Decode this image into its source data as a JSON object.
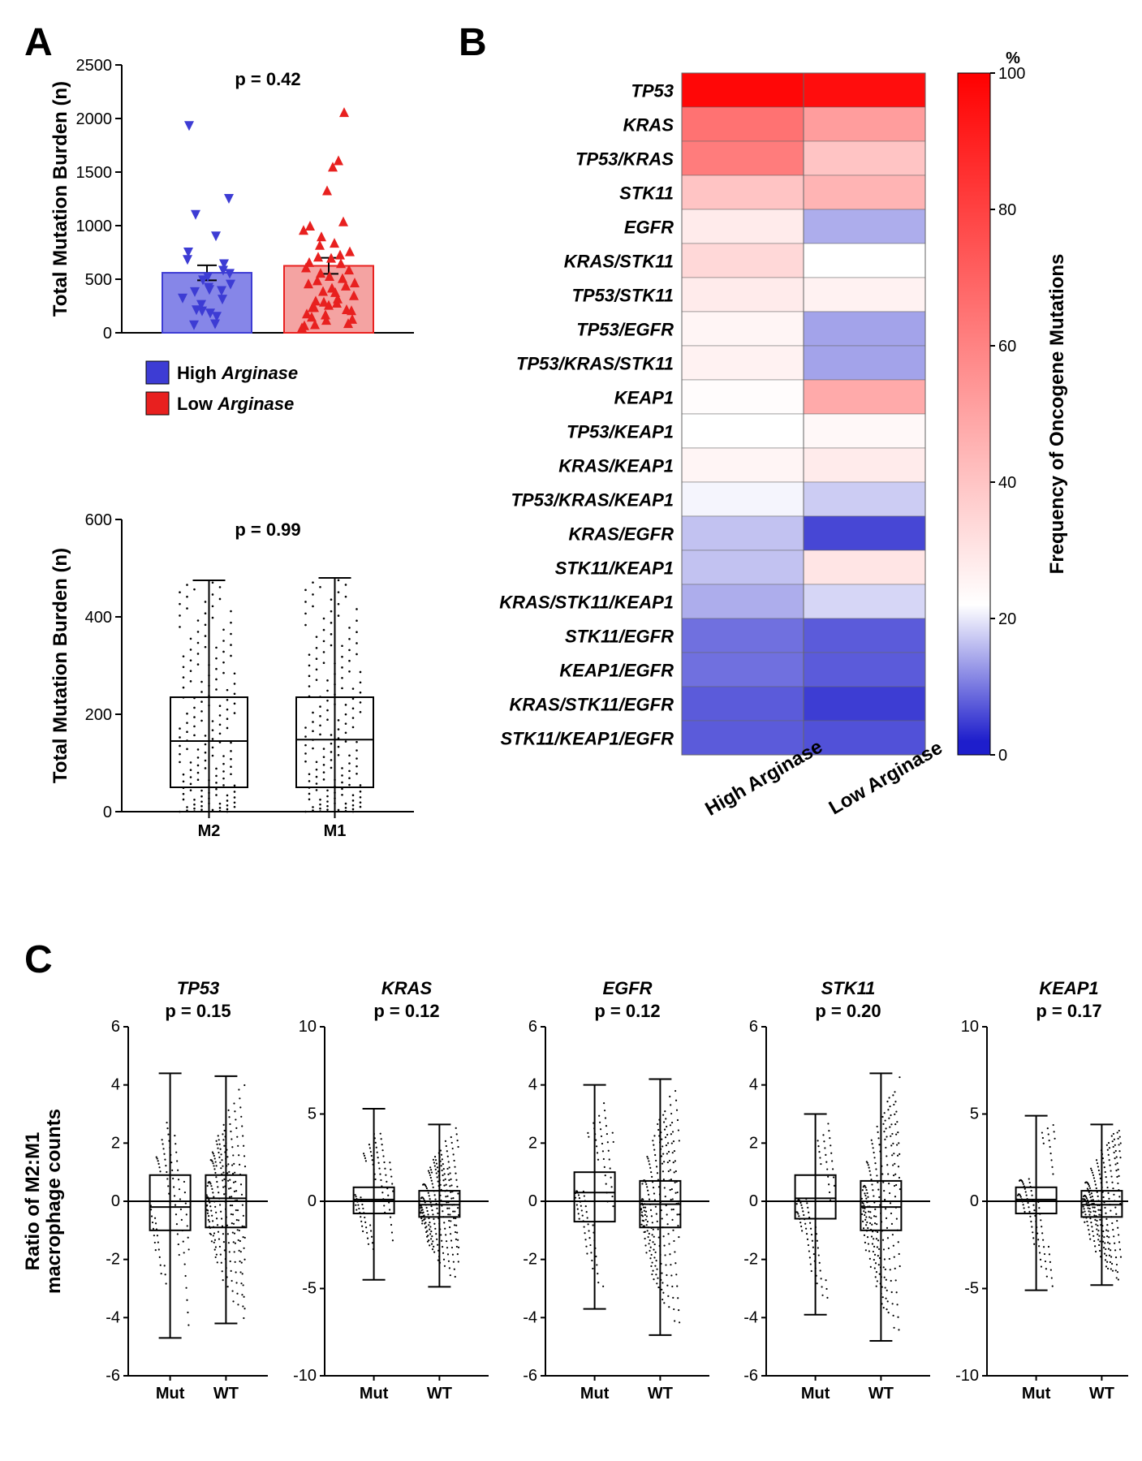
{
  "panels": {
    "A": "A",
    "B": "B",
    "C": "C"
  },
  "colors": {
    "high_arginase": "#3d3cd4",
    "high_arginase_fill": "#8686e8",
    "low_arginase": "#e8201f",
    "low_arginase_fill": "#f4a3a2",
    "heatmap_high": "#ff0000",
    "heatmap_mid": "#ffffff",
    "heatmap_low": "#1e1ecc"
  },
  "panelA_top": {
    "ylabel": "Total Mutation Burden (n)",
    "ylim": [
      0,
      2500
    ],
    "ytick_step": 500,
    "pvalue": "p = 0.42",
    "bars": [
      {
        "label": "High",
        "mean": 560,
        "sem": 70,
        "color": "#3d3cd4",
        "fill": "#8686e8"
      },
      {
        "label": "Low",
        "mean": 625,
        "sem": 75,
        "color": "#e8201f",
        "fill": "#f4a3a2"
      }
    ],
    "legend": [
      {
        "label": "High Arginase",
        "fill": "#3d3cd4"
      },
      {
        "label": "Low Arginase",
        "fill": "#e8201f"
      }
    ],
    "scatter_high": [
      320,
      210,
      180,
      640,
      1930,
      490,
      150,
      450,
      1100,
      400,
      580,
      750,
      200,
      900,
      550,
      380,
      420,
      310,
      680,
      260,
      80,
      1250,
      70,
      520,
      390
    ],
    "scatter_low": [
      50,
      760,
      2060,
      1610,
      1550,
      1330,
      900,
      300,
      1000,
      70,
      130,
      220,
      650,
      380,
      530,
      290,
      710,
      240,
      180,
      470,
      590,
      1040,
      320,
      420,
      120,
      560,
      80,
      660,
      960,
      210,
      440,
      730,
      840,
      260,
      390,
      490,
      150,
      610,
      350,
      90,
      510,
      280,
      700,
      170,
      820,
      240,
      460
    ]
  },
  "panelA_bottom": {
    "ylabel": "Total Mutation Burden (n)",
    "ylim": [
      0,
      600
    ],
    "ytick_step": 200,
    "pvalue": "p = 0.99",
    "categories": [
      "M2",
      "M1"
    ],
    "boxes": [
      {
        "q1": 50,
        "median": 145,
        "q3": 235,
        "whisker_low": 0,
        "whisker_high": 475
      },
      {
        "q1": 50,
        "median": 148,
        "q3": 235,
        "whisker_low": 0,
        "whisker_high": 480
      }
    ]
  },
  "panelB": {
    "colorbar_label": "%",
    "colorbar_title": "Frequency of Oncogene Mutations",
    "colorbar_ticks": [
      0,
      20,
      40,
      60,
      80,
      100
    ],
    "columns": [
      "High Arginase",
      "Low Arginase"
    ],
    "rows": [
      {
        "gene": "TP53",
        "values": [
          98,
          96
        ]
      },
      {
        "gene": "KRAS",
        "values": [
          65,
          52
        ]
      },
      {
        "gene": "TP53/KRAS",
        "values": [
          62,
          40
        ]
      },
      {
        "gene": "STK11",
        "values": [
          40,
          45
        ]
      },
      {
        "gene": "EGFR",
        "values": [
          28,
          14
        ]
      },
      {
        "gene": "KRAS/STK11",
        "values": [
          34,
          22
        ]
      },
      {
        "gene": "TP53/STK11",
        "values": [
          28,
          26
        ]
      },
      {
        "gene": "TP53/EGFR",
        "values": [
          25,
          13
        ]
      },
      {
        "gene": "TP53/KRAS/STK11",
        "values": [
          26,
          13
        ]
      },
      {
        "gene": "KEAP1",
        "values": [
          23,
          48
        ]
      },
      {
        "gene": "TP53/KEAP1",
        "values": [
          22,
          24
        ]
      },
      {
        "gene": "KRAS/KEAP1",
        "values": [
          25,
          28
        ]
      },
      {
        "gene": "TP53/KRAS/KEAP1",
        "values": [
          21,
          17
        ]
      },
      {
        "gene": "KRAS/EGFR",
        "values": [
          16,
          4
        ]
      },
      {
        "gene": "STK11/KEAP1",
        "values": [
          16,
          30
        ]
      },
      {
        "gene": "KRAS/STK11/KEAP1",
        "values": [
          14,
          18
        ]
      },
      {
        "gene": "STK11/EGFR",
        "values": [
          8,
          6
        ]
      },
      {
        "gene": "KEAP1/EGFR",
        "values": [
          8,
          6
        ]
      },
      {
        "gene": "KRAS/STK11/EGFR",
        "values": [
          6,
          3
        ]
      },
      {
        "gene": "STK11/KEAP1/EGFR",
        "values": [
          6,
          5
        ]
      }
    ]
  },
  "panelC": {
    "ylabel": "Ratio of M2:M1\nmacrophage counts",
    "categories": [
      "Mut",
      "WT"
    ],
    "subplots": [
      {
        "gene": "TP53",
        "pvalue": "p = 0.15",
        "ylim": [
          -6,
          6
        ],
        "ytick_step": 2,
        "mut": {
          "q1": -1.0,
          "median": -0.2,
          "q3": 0.9,
          "wl": -4.7,
          "wh": 4.4
        },
        "wt": {
          "q1": -0.9,
          "median": 0.1,
          "q3": 0.9,
          "wl": -4.2,
          "wh": 4.3
        }
      },
      {
        "gene": "KRAS",
        "pvalue": "p = 0.12",
        "ylim": [
          -10,
          10
        ],
        "ytick_step": 5,
        "mut": {
          "q1": -0.7,
          "median": 0.1,
          "q3": 0.8,
          "wl": -4.5,
          "wh": 5.3
        },
        "wt": {
          "q1": -0.9,
          "median": -0.2,
          "q3": 0.6,
          "wl": -4.9,
          "wh": 4.4
        }
      },
      {
        "gene": "EGFR",
        "pvalue": "p = 0.12",
        "ylim": [
          -6,
          6
        ],
        "ytick_step": 2,
        "mut": {
          "q1": -0.7,
          "median": 0.3,
          "q3": 1.0,
          "wl": -3.7,
          "wh": 4.0
        },
        "wt": {
          "q1": -0.9,
          "median": -0.1,
          "q3": 0.7,
          "wl": -4.6,
          "wh": 4.2
        }
      },
      {
        "gene": "STK11",
        "pvalue": "p = 0.20",
        "ylim": [
          -6,
          6
        ],
        "ytick_step": 2,
        "mut": {
          "q1": -0.6,
          "median": 0.1,
          "q3": 0.9,
          "wl": -3.9,
          "wh": 3.0
        },
        "wt": {
          "q1": -1.0,
          "median": -0.2,
          "q3": 0.7,
          "wl": -4.8,
          "wh": 4.4
        }
      },
      {
        "gene": "KEAP1",
        "pvalue": "p = 0.17",
        "ylim": [
          -10,
          10
        ],
        "ytick_step": 5,
        "mut": {
          "q1": -0.7,
          "median": 0.1,
          "q3": 0.8,
          "wl": -5.1,
          "wh": 4.9
        },
        "wt": {
          "q1": -0.9,
          "median": -0.2,
          "q3": 0.6,
          "wl": -4.8,
          "wh": 4.4
        }
      }
    ]
  }
}
